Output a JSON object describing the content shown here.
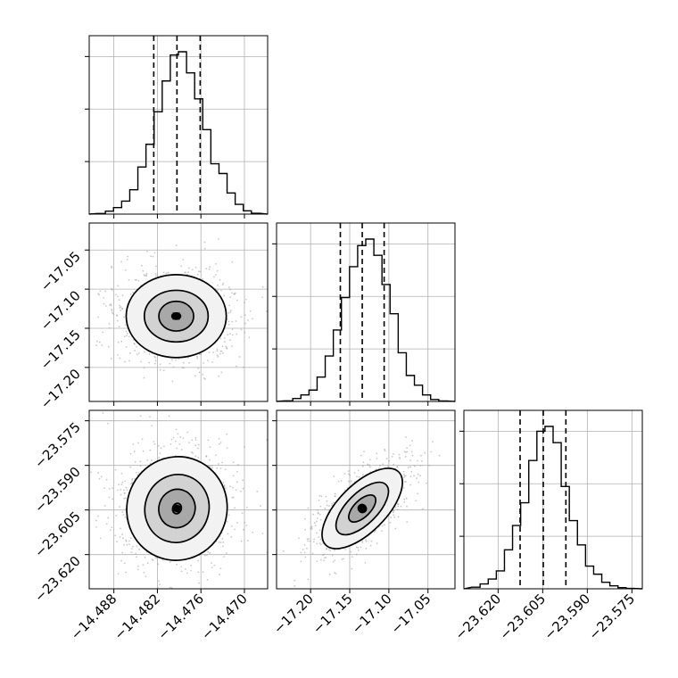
{
  "chart_data": {
    "type": "corner",
    "grid": true,
    "parameters": [
      {
        "ticks": [
          -14.488,
          -14.482,
          -14.476,
          -14.47
        ],
        "tick_labels": [
          "−14.488",
          "−14.482",
          "−14.476",
          "−14.470"
        ],
        "range": [
          -14.4914,
          -14.4668
        ],
        "quantiles": [
          -14.4825,
          -14.4793,
          -14.4761
        ],
        "histogram": [
          0.004,
          0.018,
          0.04,
          0.08,
          0.15,
          0.29,
          0.43,
          0.63,
          0.82,
          0.98,
          1.0,
          0.87,
          0.71,
          0.52,
          0.31,
          0.25,
          0.13,
          0.06,
          0.02,
          0.005
        ]
      },
      {
        "ticks": [
          -17.2,
          -17.15,
          -17.1,
          -17.05
        ],
        "tick_labels": [
          "−17.20",
          "−17.15",
          "−17.10",
          "−17.05"
        ],
        "range": [
          -17.2435,
          -17.0155
        ],
        "quantiles": [
          -17.162,
          -17.134,
          -17.106
        ],
        "histogram": [
          0.004,
          0.018,
          0.04,
          0.07,
          0.15,
          0.28,
          0.44,
          0.64,
          0.83,
          0.96,
          1.0,
          0.9,
          0.72,
          0.54,
          0.3,
          0.16,
          0.1,
          0.04,
          0.012,
          0.003
        ]
      },
      {
        "ticks": [
          -23.62,
          -23.605,
          -23.59,
          -23.575
        ],
        "tick_labels": [
          "−23.620",
          "−23.605",
          "−23.590",
          "−23.575"
        ],
        "range": [
          -23.6315,
          -23.5715
        ],
        "quantiles": [
          -23.6126,
          -23.6048,
          -23.5972
        ],
        "histogram": [
          0.01,
          0.03,
          0.06,
          0.11,
          0.24,
          0.39,
          0.53,
          0.79,
          0.97,
          1.0,
          0.9,
          0.63,
          0.42,
          0.27,
          0.14,
          0.09,
          0.04,
          0.018,
          0.007,
          0.002
        ]
      }
    ],
    "contours": [
      {
        "x_param": 0,
        "y_param": 1,
        "center": [
          -14.4794,
          -17.1345
        ],
        "radii": [
          [
            0.0006,
            0.004
          ],
          [
            0.0024,
            0.019
          ],
          [
            0.0044,
            0.033
          ],
          [
            0.0069,
            0.053
          ]
        ],
        "rotation_deg": 0
      },
      {
        "x_param": 0,
        "y_param": 2,
        "center": [
          -14.4793,
          -23.6045
        ],
        "radii": [
          [
            0.0006,
            0.0018
          ],
          [
            0.0025,
            0.0065
          ],
          [
            0.0044,
            0.0115
          ],
          [
            0.0069,
            0.0175
          ]
        ],
        "rotation_deg": 18
      },
      {
        "x_param": 1,
        "y_param": 2,
        "center": [
          -17.134,
          -23.6045
        ],
        "radii": [
          [
            0.005,
            0.0014
          ],
          [
            0.022,
            0.0028
          ],
          [
            0.043,
            0.0052
          ],
          [
            0.066,
            0.008
          ]
        ],
        "rotation_deg": -45
      }
    ]
  }
}
